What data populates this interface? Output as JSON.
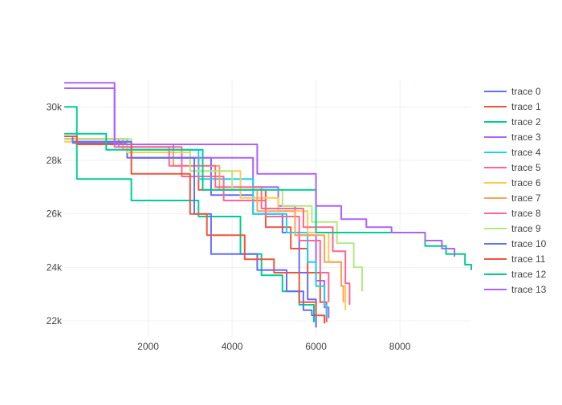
{
  "chart_data": {
    "type": "line",
    "line_shape": "step",
    "xlim": [
      0,
      9700
    ],
    "ylim": [
      21400,
      31000
    ],
    "x_ticks": [
      2000,
      4000,
      6000,
      8000
    ],
    "x_tick_labels": [
      "2000",
      "4000",
      "6000",
      "8000"
    ],
    "y_ticks": [
      22000,
      24000,
      26000,
      28000,
      30000
    ],
    "y_tick_labels": [
      "22k",
      "24k",
      "26k",
      "28k",
      "30k"
    ],
    "grid": true,
    "legend_position": "right",
    "series": [
      {
        "name": "trace 0",
        "color": "#636efa",
        "x": [
          0,
          200,
          1500,
          3500,
          4500,
          5200,
          5600,
          5800,
          6000
        ],
        "y": [
          28900,
          28650,
          28100,
          26700,
          26000,
          25300,
          23800,
          22800,
          21750
        ]
      },
      {
        "name": "trace 1",
        "color": "#ef553b",
        "x": [
          0,
          300,
          1600,
          3200,
          4800,
          5400,
          5800,
          6100,
          6250
        ],
        "y": [
          28900,
          28700,
          28100,
          26900,
          25500,
          24700,
          23800,
          22700,
          21950
        ]
      },
      {
        "name": "trace 2",
        "color": "#00cc96",
        "x": [
          0,
          300,
          1600,
          3200,
          4200,
          4700,
          5200,
          5600,
          5950
        ],
        "y": [
          30000,
          27300,
          26500,
          25900,
          24500,
          23700,
          23100,
          22600,
          21950
        ]
      },
      {
        "name": "trace 3",
        "color": "#ab63fa",
        "x": [
          0,
          1200,
          2600,
          4500,
          5100,
          5500,
          6000,
          6200,
          6300
        ],
        "y": [
          30900,
          28600,
          28100,
          27000,
          26300,
          25200,
          23500,
          22500,
          22100
        ]
      },
      {
        "name": "trace 4",
        "color": "#19d3f3",
        "x": [
          0,
          1500,
          3200,
          4500,
          5300,
          5800,
          6000,
          6200,
          6250
        ],
        "y": [
          28800,
          28400,
          27300,
          26000,
          25300,
          24200,
          23300,
          22600,
          22100
        ]
      },
      {
        "name": "trace 5",
        "color": "#ff6692",
        "x": [
          0,
          1200,
          2800,
          3800,
          4800,
          5600,
          6100,
          6300
        ],
        "y": [
          28800,
          28500,
          27400,
          26500,
          25900,
          25000,
          23800,
          22700
        ]
      },
      {
        "name": "trace 6",
        "color": "#fecb52",
        "x": [
          0,
          1500,
          3000,
          4200,
          5100,
          5800,
          6300,
          6600,
          6700
        ],
        "y": [
          28700,
          28300,
          27600,
          26600,
          26100,
          25300,
          24200,
          23300,
          22400
        ]
      },
      {
        "name": "trace 7",
        "color": "#ffa15a",
        "x": [
          0,
          1400,
          2600,
          3700,
          4600,
          5500,
          6200,
          6600,
          6650
        ],
        "y": [
          28800,
          28400,
          27800,
          26900,
          26100,
          25200,
          24200,
          23300,
          22700
        ]
      },
      {
        "name": "trace 8",
        "color": "#ff6692",
        "x": [
          0,
          1300,
          2500,
          3600,
          4700,
          5700,
          6400,
          6700,
          6800
        ],
        "y": [
          28800,
          28500,
          27800,
          27000,
          26200,
          25500,
          24600,
          23400,
          22600
        ]
      },
      {
        "name": "trace 9",
        "color": "#b6e880",
        "x": [
          0,
          1600,
          3000,
          4000,
          5200,
          5900,
          6500,
          6900,
          7100
        ],
        "y": [
          28800,
          28400,
          27600,
          26900,
          26300,
          25700,
          24900,
          24000,
          23100
        ]
      },
      {
        "name": "trace 10",
        "color": "#636efa",
        "x": [
          0,
          200,
          1600,
          3100,
          3500,
          4600,
          5300,
          5700,
          5900,
          6000
        ],
        "y": [
          28900,
          28700,
          28100,
          26000,
          24500,
          23900,
          23100,
          22400,
          22200,
          21750
        ]
      },
      {
        "name": "trace 11",
        "color": "#ef553b",
        "x": [
          0,
          300,
          1600,
          3000,
          3400,
          4300,
          5000,
          5600,
          6000,
          6200
        ],
        "y": [
          28900,
          28600,
          27500,
          26000,
          25200,
          24300,
          23800,
          22700,
          22200,
          21900
        ]
      },
      {
        "name": "trace 12",
        "color": "#00cc96",
        "x": [
          0,
          1000,
          3000,
          3300,
          5900,
          6000,
          8000,
          8600,
          9100,
          9550,
          9700
        ],
        "y": [
          29000,
          28400,
          28400,
          26900,
          26900,
          25300,
          25300,
          24800,
          24500,
          24100,
          23900
        ]
      },
      {
        "name": "trace 13",
        "color": "#ab63fa",
        "x": [
          0,
          1200,
          4300,
          4600,
          6000,
          6600,
          7200,
          7800,
          8600,
          9000,
          9300
        ],
        "y": [
          30700,
          28600,
          28600,
          27500,
          26300,
          25800,
          25500,
          25300,
          25000,
          24700,
          24400
        ]
      }
    ]
  }
}
